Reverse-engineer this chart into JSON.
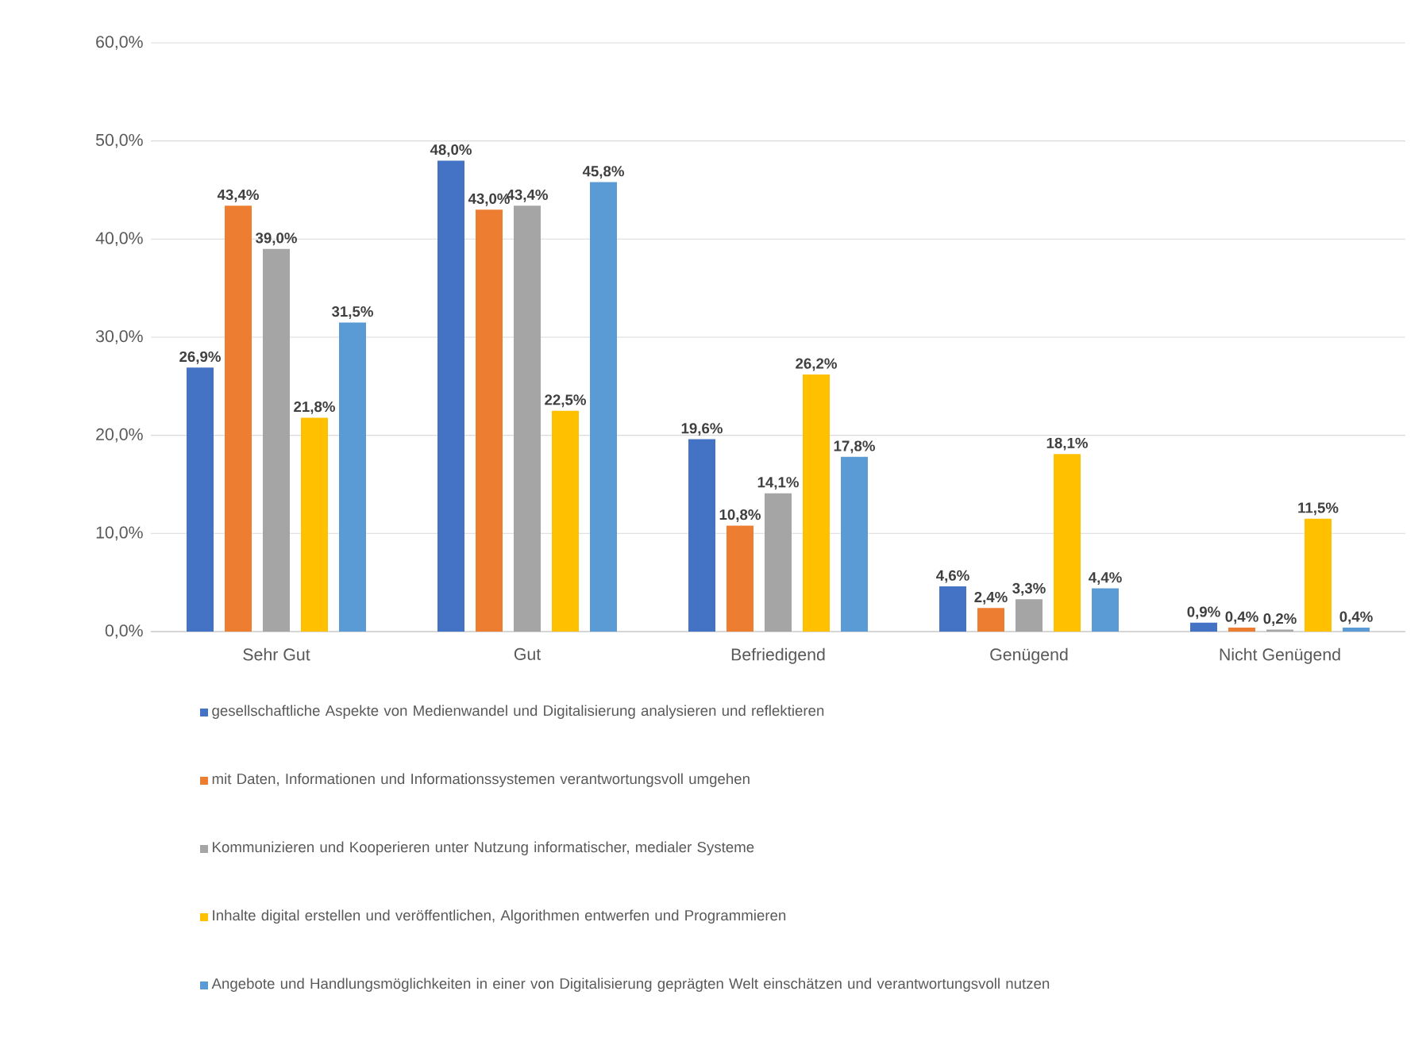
{
  "chart_data": {
    "type": "bar",
    "categories": [
      "Sehr Gut",
      "Gut",
      "Befriedigend",
      "Genügend",
      "Nicht Genügend"
    ],
    "series": [
      {
        "name": "gesellschaftliche Aspekte von Medienwandel und Digitalisierung analysieren und reflektieren",
        "color": "#4472c4",
        "values": [
          26.9,
          48.0,
          19.6,
          4.6,
          0.9
        ],
        "value_labels": [
          "26,9%",
          "48,0%",
          "19,6%",
          "4,6%",
          "0,9%"
        ]
      },
      {
        "name": "mit Daten, Informationen und Informationssystemen verantwortungsvoll umgehen",
        "color": "#ed7d31",
        "values": [
          43.4,
          43.0,
          10.8,
          2.4,
          0.4
        ],
        "value_labels": [
          "43,4%",
          "43,0%",
          "10,8%",
          "2,4%",
          "0,4%"
        ]
      },
      {
        "name": "Kommunizieren und Kooperieren unter Nutzung informatischer, medialer Systeme",
        "color": "#a5a5a5",
        "values": [
          39.0,
          43.4,
          14.1,
          3.3,
          0.2
        ],
        "value_labels": [
          "39,0%",
          "43,4%",
          "14,1%",
          "3,3%",
          "0,2%"
        ]
      },
      {
        "name": "Inhalte digital erstellen und veröffentlichen, Algorithmen entwerfen und Programmieren",
        "color": "#ffc000",
        "values": [
          21.8,
          22.5,
          26.2,
          18.1,
          11.5
        ],
        "value_labels": [
          "21,8%",
          "22,5%",
          "26,2%",
          "18,1%",
          "11,5%"
        ]
      },
      {
        "name": "Angebote und Handlungsmöglichkeiten in einer von Digitalisierung geprägten Welt einschätzen und verantwortungsvoll nutzen",
        "color": "#5b9bd5",
        "values": [
          31.5,
          45.8,
          17.8,
          4.4,
          0.4
        ],
        "value_labels": [
          "31,5%",
          "45,8%",
          "17,8%",
          "4,4%",
          "0,4%"
        ]
      }
    ],
    "ylim": [
      0,
      60
    ],
    "yticks": [
      {
        "value": 0,
        "label": "0,0%"
      },
      {
        "value": 10,
        "label": "10,0%"
      },
      {
        "value": 20,
        "label": "20,0%"
      },
      {
        "value": 30,
        "label": "30,0%"
      },
      {
        "value": 40,
        "label": "40,0%"
      },
      {
        "value": 50,
        "label": "50,0%"
      },
      {
        "value": 60,
        "label": "60,0%"
      }
    ],
    "grid": "y",
    "legend": "bottom"
  }
}
